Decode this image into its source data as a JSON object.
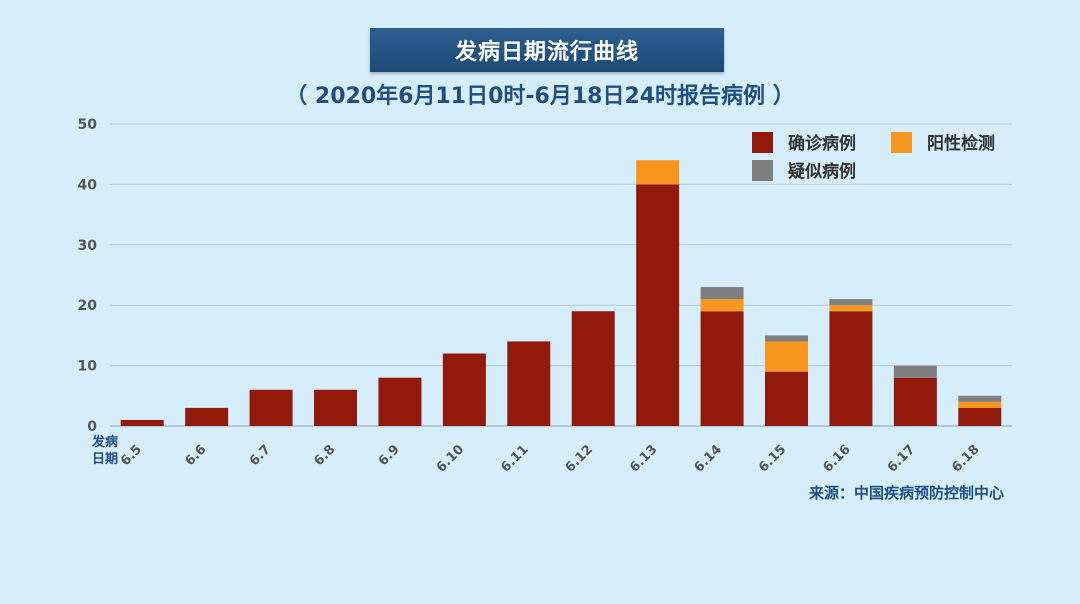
{
  "header": {
    "title": "发病日期流行曲线",
    "subtitle": "（ 2020年6月11日0时-6月18日24时报告病例 ）"
  },
  "footer": {
    "source": "来源：中国疾病预防控制中心"
  },
  "chart_data": {
    "type": "bar",
    "stacked": true,
    "title": "发病日期流行曲线",
    "subtitle": "（ 2020年6月11日0时-6月18日24时报告病例 ）",
    "xlabel": "发病日期",
    "ylabel": "",
    "ylim": [
      0,
      50
    ],
    "yticks": [
      0,
      10,
      20,
      30,
      40,
      50
    ],
    "grid": true,
    "legend": "top-right",
    "categories": [
      "6.5",
      "6.6",
      "6.7",
      "6.8",
      "6.9",
      "6.10",
      "6.11",
      "6.12",
      "6.13",
      "6.14",
      "6.15",
      "6.16",
      "6.17",
      "6.18"
    ],
    "series": [
      {
        "name": "确诊病例",
        "color": "#921a0c",
        "values": [
          1,
          3,
          6,
          6,
          8,
          12,
          14,
          19,
          40,
          19,
          9,
          19,
          8,
          3
        ]
      },
      {
        "name": "阳性检测",
        "color": "#f7961e",
        "values": [
          0,
          0,
          0,
          0,
          0,
          0,
          0,
          0,
          4,
          2,
          5,
          1,
          0,
          1
        ]
      },
      {
        "name": "疑似病例",
        "color": "#7f7f7f",
        "values": [
          0,
          0,
          0,
          0,
          0,
          0,
          0,
          0,
          0,
          2,
          1,
          1,
          2,
          1
        ]
      }
    ]
  }
}
